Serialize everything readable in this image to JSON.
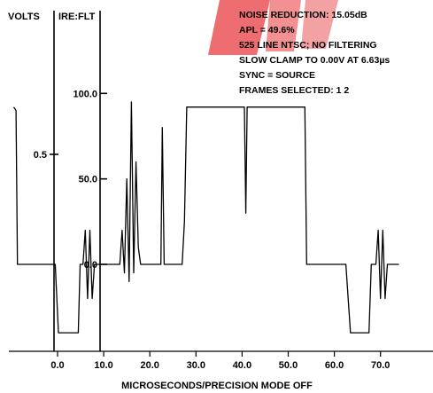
{
  "chart_data": {
    "type": "line",
    "title": "",
    "xlabel": "MICROSECONDS/PRECISION MODE OFF",
    "ylabel_left": "VOLTS",
    "ylabel_right": "IRE:FLT",
    "x_ticks": [
      "0.0",
      "10.0",
      "20.0",
      "30.0",
      "40.0",
      "50.0",
      "60.0",
      "70.0"
    ],
    "x_tick_values": [
      0,
      10,
      20,
      30,
      40,
      50,
      60,
      70
    ],
    "volts_ticks": [
      "0.5"
    ],
    "volts_tick_values": [
      0.5
    ],
    "ire_ticks": [
      "100.0",
      "50.0",
      "0.0"
    ],
    "ire_tick_values": [
      100,
      50,
      0
    ],
    "xlim": [
      -10,
      80
    ],
    "ylim_ire": [
      -40,
      120
    ],
    "info_lines": [
      "NOISE REDUCTION: 15.05dB",
      "APL = 49.6%",
      "525 LINE NTSC; NO FILTERING",
      "SLOW CLAMP TO 0.00V AT 6.63µs",
      "SYNC = SOURCE",
      "FRAMES SELECTED: 1 2"
    ],
    "series": [
      {
        "points": [
          [
            -9.5,
            92
          ],
          [
            -9,
            90
          ],
          [
            -8.7,
            0
          ],
          [
            -2,
            0
          ],
          [
            -0.5,
            0
          ],
          [
            0.2,
            -40
          ],
          [
            4.5,
            -40
          ],
          [
            4.9,
            0
          ],
          [
            5.5,
            0
          ],
          [
            6,
            20
          ],
          [
            6.5,
            -20
          ],
          [
            7,
            20
          ],
          [
            7.5,
            -20
          ],
          [
            8,
            0
          ],
          [
            9,
            0
          ],
          [
            13,
            0
          ],
          [
            13.5,
            0
          ],
          [
            14,
            20
          ],
          [
            14.5,
            -5
          ],
          [
            15,
            50
          ],
          [
            15.5,
            -10
          ],
          [
            16,
            95
          ],
          [
            16.5,
            -5
          ],
          [
            17,
            60
          ],
          [
            17.5,
            10
          ],
          [
            18,
            0
          ],
          [
            22.4,
            0
          ],
          [
            22.7,
            80
          ],
          [
            23.1,
            0
          ],
          [
            27,
            0
          ],
          [
            27.5,
            25
          ],
          [
            28,
            92
          ],
          [
            40.5,
            92
          ],
          [
            40.8,
            30
          ],
          [
            41.1,
            92
          ],
          [
            53.6,
            92
          ],
          [
            54,
            0
          ],
          [
            62.5,
            0
          ],
          [
            63.5,
            -40
          ],
          [
            67.5,
            -40
          ],
          [
            68,
            0
          ],
          [
            69,
            0
          ],
          [
            69.5,
            20
          ],
          [
            70,
            -20
          ],
          [
            70.5,
            20
          ],
          [
            71,
            -20
          ],
          [
            71.5,
            0
          ],
          [
            74,
            0
          ]
        ]
      }
    ],
    "color": "#000000",
    "watermark_color": "#e8353a"
  }
}
